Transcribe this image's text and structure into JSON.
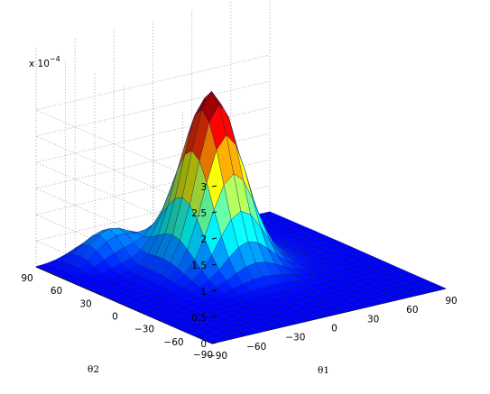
{
  "chart_data": {
    "type": "surface",
    "title": "",
    "xlabel": "θ1",
    "ylabel": "θ2",
    "zlabel": "",
    "z_multiplier": "x 10",
    "z_exponent": "−4",
    "xlim": [
      -90,
      90
    ],
    "ylim": [
      -90,
      90
    ],
    "zlim": [
      0,
      3.2
    ],
    "x_ticks": [
      -90,
      -60,
      -30,
      0,
      30,
      60,
      90
    ],
    "x_tick_labels": [
      "−90",
      "−60",
      "−30",
      "0",
      "30",
      "60",
      "90"
    ],
    "y_ticks": [
      -90,
      -60,
      -30,
      0,
      30,
      60,
      90
    ],
    "y_tick_labels": [
      "−90",
      "−60",
      "−30",
      "0",
      "30",
      "60",
      "90"
    ],
    "z_ticks": [
      0,
      0.5,
      1,
      1.5,
      2,
      2.5,
      3
    ],
    "z_tick_labels": [
      "0",
      "0.5",
      "1",
      "1.5",
      "2",
      "2.5",
      "3"
    ],
    "grid": true,
    "colormap": "jet",
    "grid_resolution_deg": 7.5,
    "peak": {
      "theta1": 0,
      "theta2": 30,
      "value": 3.2
    },
    "secondary_lobe": {
      "theta1": -45,
      "theta2": 75,
      "value": 0.55
    }
  }
}
